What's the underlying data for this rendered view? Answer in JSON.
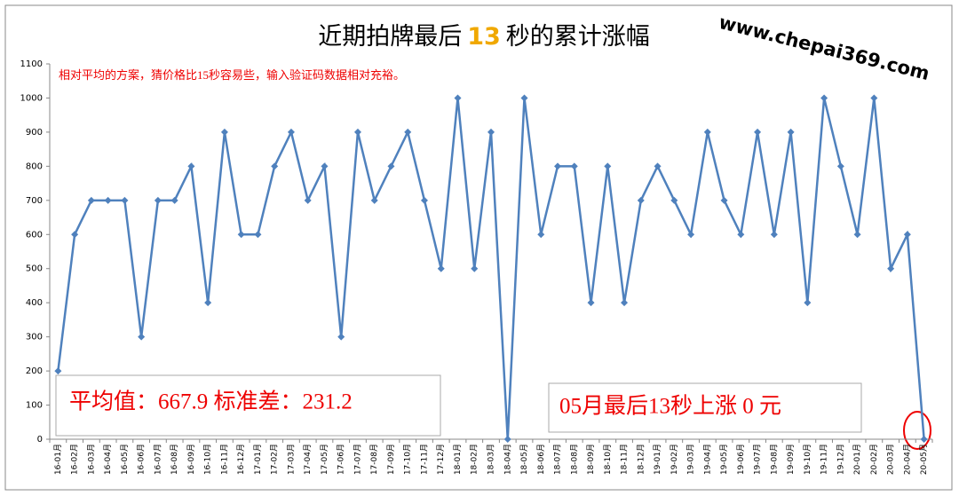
{
  "chart_data": {
    "type": "line",
    "title": [
      "近期拍牌最后",
      "13",
      "秒的累计涨幅"
    ],
    "title_highlight_color": "#f0a800",
    "watermark": "www.chepai369.com",
    "annotations": [
      "相对平均的方案，猜价格比15秒容易些，输入验证码数据相对充裕。",
      "平均值：667.9 标准差：231.2",
      "05月最后13秒上涨 0 元"
    ],
    "categories": [
      "16-01月",
      "16-02月",
      "16-03月",
      "16-04月",
      "16-05月",
      "16-06月",
      "16-07月",
      "16-08月",
      "16-09月",
      "16-10月",
      "16-11月",
      "16-12月",
      "17-01月",
      "17-02月",
      "17-03月",
      "17-04月",
      "17-05月",
      "17-06月",
      "17-07月",
      "17-08月",
      "17-09月",
      "17-10月",
      "17-11月",
      "17-12月",
      "18-01月",
      "18-02月",
      "18-03月",
      "18-04月",
      "18-05月",
      "18-06月",
      "18-07月",
      "18-08月",
      "18-09月",
      "18-10月",
      "18-11月",
      "18-12月",
      "19-01月",
      "19-02月",
      "19-03月",
      "19-04月",
      "19-05月",
      "19-06月",
      "19-07月",
      "19-08月",
      "19-09月",
      "19-10月",
      "19-11月",
      "19-12月",
      "20-01月",
      "20-02月",
      "20-03月",
      "20-04月",
      "20-05月"
    ],
    "values": [
      200,
      600,
      700,
      700,
      700,
      300,
      700,
      700,
      800,
      400,
      900,
      600,
      600,
      800,
      900,
      700,
      800,
      300,
      900,
      700,
      800,
      900,
      700,
      500,
      1000,
      500,
      900,
      0,
      1000,
      600,
      800,
      800,
      400,
      800,
      400,
      700,
      800,
      700,
      600,
      900,
      700,
      600,
      900,
      600,
      900,
      400,
      1000,
      800,
      600,
      1000,
      500,
      600,
      0
    ],
    "color": "#4f81bd",
    "ylim": [
      0,
      1100
    ],
    "yticks": [
      0,
      100,
      200,
      300,
      400,
      500,
      600,
      700,
      800,
      900,
      1000,
      1100
    ],
    "grid": false
  }
}
